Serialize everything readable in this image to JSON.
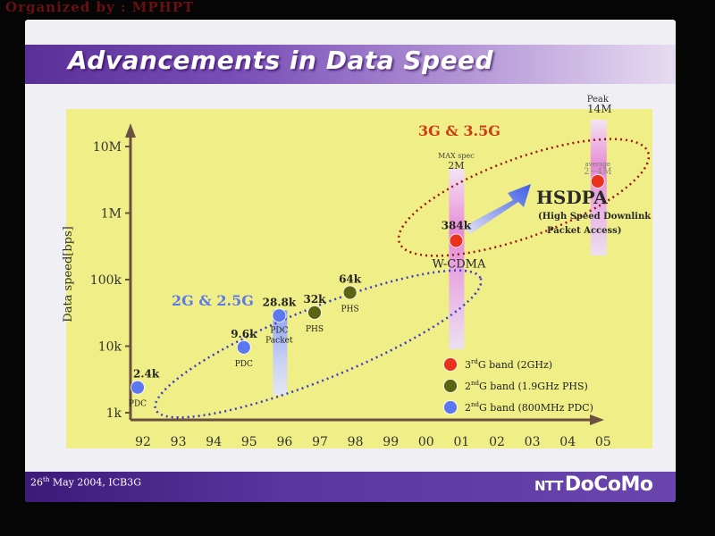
{
  "banner": "Organized by : MPHPT",
  "slide": {
    "title": "Advancements in Data Speed",
    "footer_date_day": "26",
    "footer_date_suffix": "th",
    "footer_date_rest": " May 2004, ICB3G",
    "logo_ntt": "NTT",
    "logo_docomo": "DoCoMo"
  },
  "colors": {
    "plot_bg": "#f0ee86",
    "band_3g": "#e8321e",
    "band_2g_phs": "#5a6412",
    "band_2g_pdc": "#5c78f0",
    "ellipse_2g": "#3a3ad0",
    "ellipse_3g": "#9a1818"
  },
  "chart_data": {
    "type": "scatter",
    "ylabel": "Data speed[bps]",
    "y_scale": "log",
    "y_ticks": [
      "1k",
      "10k",
      "100k",
      "1M",
      "10M"
    ],
    "y_tick_values": [
      1000,
      10000,
      100000,
      1000000,
      10000000
    ],
    "x_ticks": [
      "92",
      "93",
      "94",
      "95",
      "96",
      "97",
      "98",
      "99",
      "00",
      "01",
      "02",
      "03",
      "04",
      "05"
    ],
    "points": [
      {
        "year": "92",
        "value": 2400,
        "label": "2.4k",
        "sub": "PDC",
        "band": "2G PDC"
      },
      {
        "year": "95",
        "value": 9600,
        "label": "9.6k",
        "sub": "PDC",
        "band": "2G PDC"
      },
      {
        "year": "96",
        "value": 28800,
        "label": "28.8k",
        "sub": "PDC Packet",
        "band": "2G PDC"
      },
      {
        "year": "97",
        "value": 32000,
        "label": "32k",
        "sub": "PHS",
        "band": "2G PHS"
      },
      {
        "year": "98",
        "value": 64000,
        "label": "64k",
        "sub": "PHS",
        "band": "2G PHS"
      },
      {
        "year": "01",
        "value": 384000,
        "label": "384k",
        "sub": "W-CDMA",
        "band": "3G"
      },
      {
        "year": "05",
        "value": 3000000,
        "label": "2~4M",
        "sub": "average",
        "band": "3G"
      }
    ],
    "vertical_bars": [
      {
        "year": "96",
        "label": "PDC Packet range"
      },
      {
        "year": "01",
        "top_label_1": "MAX spec",
        "top_label_2": "2M"
      },
      {
        "year": "05",
        "top_label_1": "Peak",
        "top_label_2": "14M"
      }
    ],
    "annotations": {
      "group_2g": "2G & 2.5G",
      "group_3g": "3G & 3.5G",
      "hsdpa": "HSDPA",
      "hsdpa_sub_1": "(High Speed Downlink",
      "hsdpa_sub_2": "Packet Access)"
    },
    "legend": [
      {
        "label_pre": "3",
        "label_sup": "rd",
        "label_post": "G band (2GHz)",
        "color": "#e8321e"
      },
      {
        "label_pre": "2",
        "label_sup": "nd",
        "label_post": "G band (1.9GHz PHS)",
        "color": "#5a6412"
      },
      {
        "label_pre": "2",
        "label_sup": "nd",
        "label_post": "G band (800MHz PDC)",
        "color": "#5c78f0"
      }
    ],
    "legend_position": "bottom-right"
  }
}
